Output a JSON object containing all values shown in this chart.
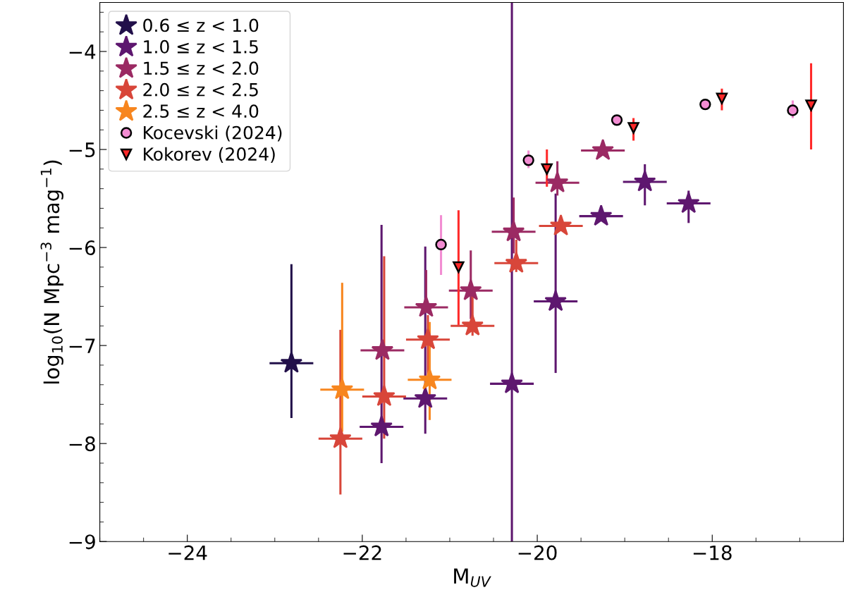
{
  "chart_data": {
    "type": "scatter",
    "xlabel": "M$_{UV}$",
    "ylabel": "log$_{10}$(N Mpc$^{−3}$ mag$^{−1}$)",
    "xlim": [
      -25,
      -16.5
    ],
    "xticks": [
      -24,
      -22,
      -20,
      -18
    ],
    "ylim": [
      -9,
      -3.5
    ],
    "yticks": [
      -9,
      -8,
      -7,
      -6,
      -5,
      -4
    ],
    "grid": false,
    "legend": "top left",
    "series": [
      {
        "name": "0.6 ≤ z < 1.0",
        "color": "#22104a",
        "marker": "star",
        "x": [
          -22.81
        ],
        "values": [
          -7.18
        ],
        "errors": [
          [
            -7.74,
            -6.17
          ]
        ],
        "xerrors": [
          0.25
        ]
      },
      {
        "name": "1.0 ≤ z < 1.5",
        "color": "#5e176f",
        "marker": "star",
        "x": [
          -21.78,
          -21.28,
          -20.29,
          -19.79,
          -19.27,
          -18.77,
          -18.27
        ],
        "values": [
          -7.83,
          -7.54,
          -7.39,
          -6.55,
          -5.68,
          -5.33,
          -5.55
        ],
        "errors": [
          [
            -8.2,
            -5.77
          ],
          [
            -7.9,
            -5.99
          ],
          [
            -9,
            -3.5
          ],
          [
            -7.28,
            -5.45
          ],
          null,
          [
            -5.57,
            -5.15
          ],
          [
            -5.75,
            -5.42
          ]
        ],
        "xerrors": [
          0.25,
          0.25,
          0.25,
          0.25,
          0.25,
          0.25,
          0.25
        ]
      },
      {
        "name": "1.5 ≤ z < 2.0",
        "color": "#9b2a63",
        "marker": "star",
        "x": [
          -21.77,
          -21.27,
          -20.76,
          -20.27,
          -19.77,
          -19.25
        ],
        "values": [
          -7.05,
          -6.61,
          -6.44,
          -5.84,
          -5.34,
          -5.01
        ],
        "errors": [
          null,
          [
            -6.61,
            -6.23
          ],
          [
            -6.73,
            -6.03
          ],
          [
            -6.06,
            -5.49
          ],
          [
            -5.47,
            -5.12
          ],
          null
        ],
        "xerrors": [
          0.25,
          0.25,
          0.25,
          0.25,
          0.25,
          0.25
        ]
      },
      {
        "name": "2.0 ≤ z < 2.5",
        "color": "#d8463a",
        "marker": "star",
        "x": [
          -22.25,
          -21.75,
          -21.25,
          -20.74,
          -20.24,
          -19.73
        ],
        "values": [
          -7.95,
          -7.52,
          -6.94,
          -6.8,
          -6.16,
          -5.78
        ],
        "errors": [
          [
            -8.52,
            -6.84
          ],
          [
            -7.95,
            -6.09
          ],
          [
            -7.3,
            -6.69
          ],
          [
            -6.9,
            -6.49
          ],
          [
            -6.25,
            -5.92
          ],
          null
        ],
        "xerrors": [
          0.25,
          0.25,
          0.25,
          0.25,
          0.25,
          0.25
        ]
      },
      {
        "name": "2.5 ≤ z < 4.0",
        "color": "#f7861f",
        "marker": "star",
        "x": [
          -22.23,
          -21.23
        ],
        "values": [
          -7.45,
          -7.35
        ],
        "errors": [
          [
            -7.88,
            -6.36
          ],
          [
            -7.76,
            -6.76
          ]
        ],
        "xerrors": [
          0.25,
          0.25
        ]
      },
      {
        "name": "Kocevski (2024)",
        "color": "#f28cd2",
        "marker": "circle",
        "x": [
          -21.1,
          -20.1,
          -19.09,
          -18.08,
          -17.08
        ],
        "values": [
          -5.97,
          -5.11,
          -4.7,
          -4.54,
          -4.6
        ],
        "errors": [
          [
            -6.28,
            -5.67
          ],
          [
            -5.19,
            -5.01
          ],
          null,
          null,
          [
            -4.68,
            -4.5
          ]
        ]
      },
      {
        "name": "Kokorev (2024)",
        "color": "#ff2a2a",
        "marker": "triangle",
        "x": [
          -20.9,
          -19.89,
          -18.9,
          -17.89,
          -16.87
        ],
        "values": [
          -6.2,
          -5.2,
          -4.78,
          -4.48,
          -4.55
        ],
        "errors": [
          [
            -6.79,
            -5.62
          ],
          [
            -5.38,
            -5.0
          ],
          [
            -4.91,
            -4.68
          ],
          [
            -4.6,
            -4.38
          ],
          [
            -5.0,
            -4.12
          ]
        ]
      }
    ]
  }
}
